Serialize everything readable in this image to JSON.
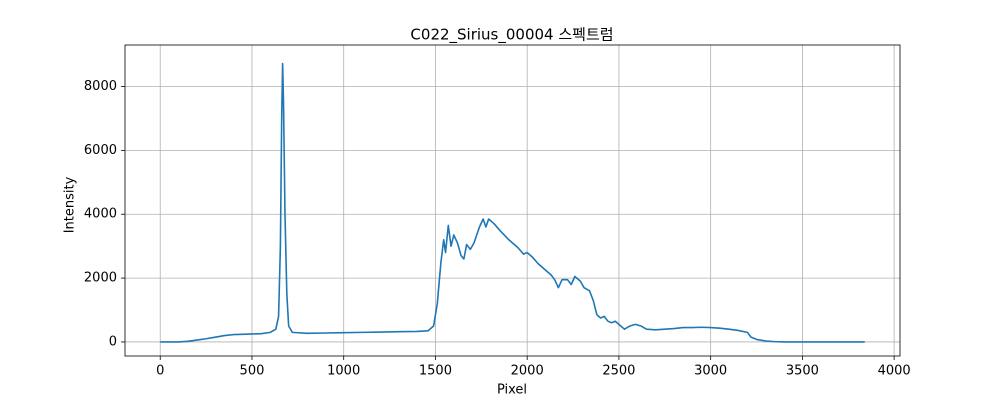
{
  "chart_data": {
    "type": "line",
    "title": "C022_Sirius_00004 스펙트럼",
    "x_label": "Pixel",
    "y_label": "Intensity",
    "xlim": [
      -192,
      4032
    ],
    "ylim": [
      -440,
      9300
    ],
    "xticks": [
      0,
      500,
      1000,
      1500,
      2000,
      2500,
      3000,
      3500,
      4000
    ],
    "yticks": [
      0,
      2000,
      4000,
      6000,
      8000
    ],
    "grid": true,
    "series": [
      {
        "color": "#1f77b4",
        "x": [
          0,
          100,
          150,
          200,
          250,
          300,
          350,
          400,
          450,
          500,
          550,
          600,
          630,
          645,
          655,
          662,
          667,
          672,
          680,
          690,
          700,
          720,
          800,
          900,
          1000,
          1100,
          1200,
          1300,
          1400,
          1460,
          1490,
          1510,
          1530,
          1545,
          1555,
          1570,
          1585,
          1600,
          1620,
          1640,
          1655,
          1670,
          1690,
          1710,
          1740,
          1760,
          1775,
          1790,
          1820,
          1850,
          1900,
          1950,
          1980,
          2000,
          2030,
          2060,
          2100,
          2130,
          2150,
          2170,
          2190,
          2220,
          2240,
          2260,
          2290,
          2310,
          2340,
          2360,
          2380,
          2400,
          2420,
          2440,
          2460,
          2480,
          2500,
          2530,
          2560,
          2590,
          2620,
          2650,
          2700,
          2750,
          2800,
          2850,
          2900,
          2950,
          3000,
          3050,
          3100,
          3150,
          3200,
          3220,
          3250,
          3300,
          3350,
          3400,
          3840
        ],
        "values": [
          0,
          0,
          20,
          60,
          100,
          150,
          200,
          230,
          240,
          250,
          260,
          300,
          400,
          800,
          3000,
          7000,
          8720,
          7500,
          4000,
          1500,
          500,
          300,
          270,
          280,
          290,
          300,
          310,
          320,
          330,
          350,
          500,
          1200,
          2500,
          3200,
          2800,
          3650,
          3000,
          3350,
          3100,
          2700,
          2600,
          3050,
          2900,
          3100,
          3600,
          3850,
          3600,
          3850,
          3700,
          3500,
          3200,
          2950,
          2750,
          2800,
          2650,
          2450,
          2250,
          2100,
          1950,
          1700,
          1950,
          1950,
          1800,
          2050,
          1900,
          1700,
          1600,
          1300,
          850,
          750,
          800,
          650,
          600,
          650,
          550,
          400,
          500,
          550,
          500,
          400,
          380,
          400,
          420,
          450,
          450,
          460,
          450,
          430,
          400,
          360,
          300,
          150,
          80,
          30,
          10,
          0,
          0
        ]
      }
    ]
  }
}
